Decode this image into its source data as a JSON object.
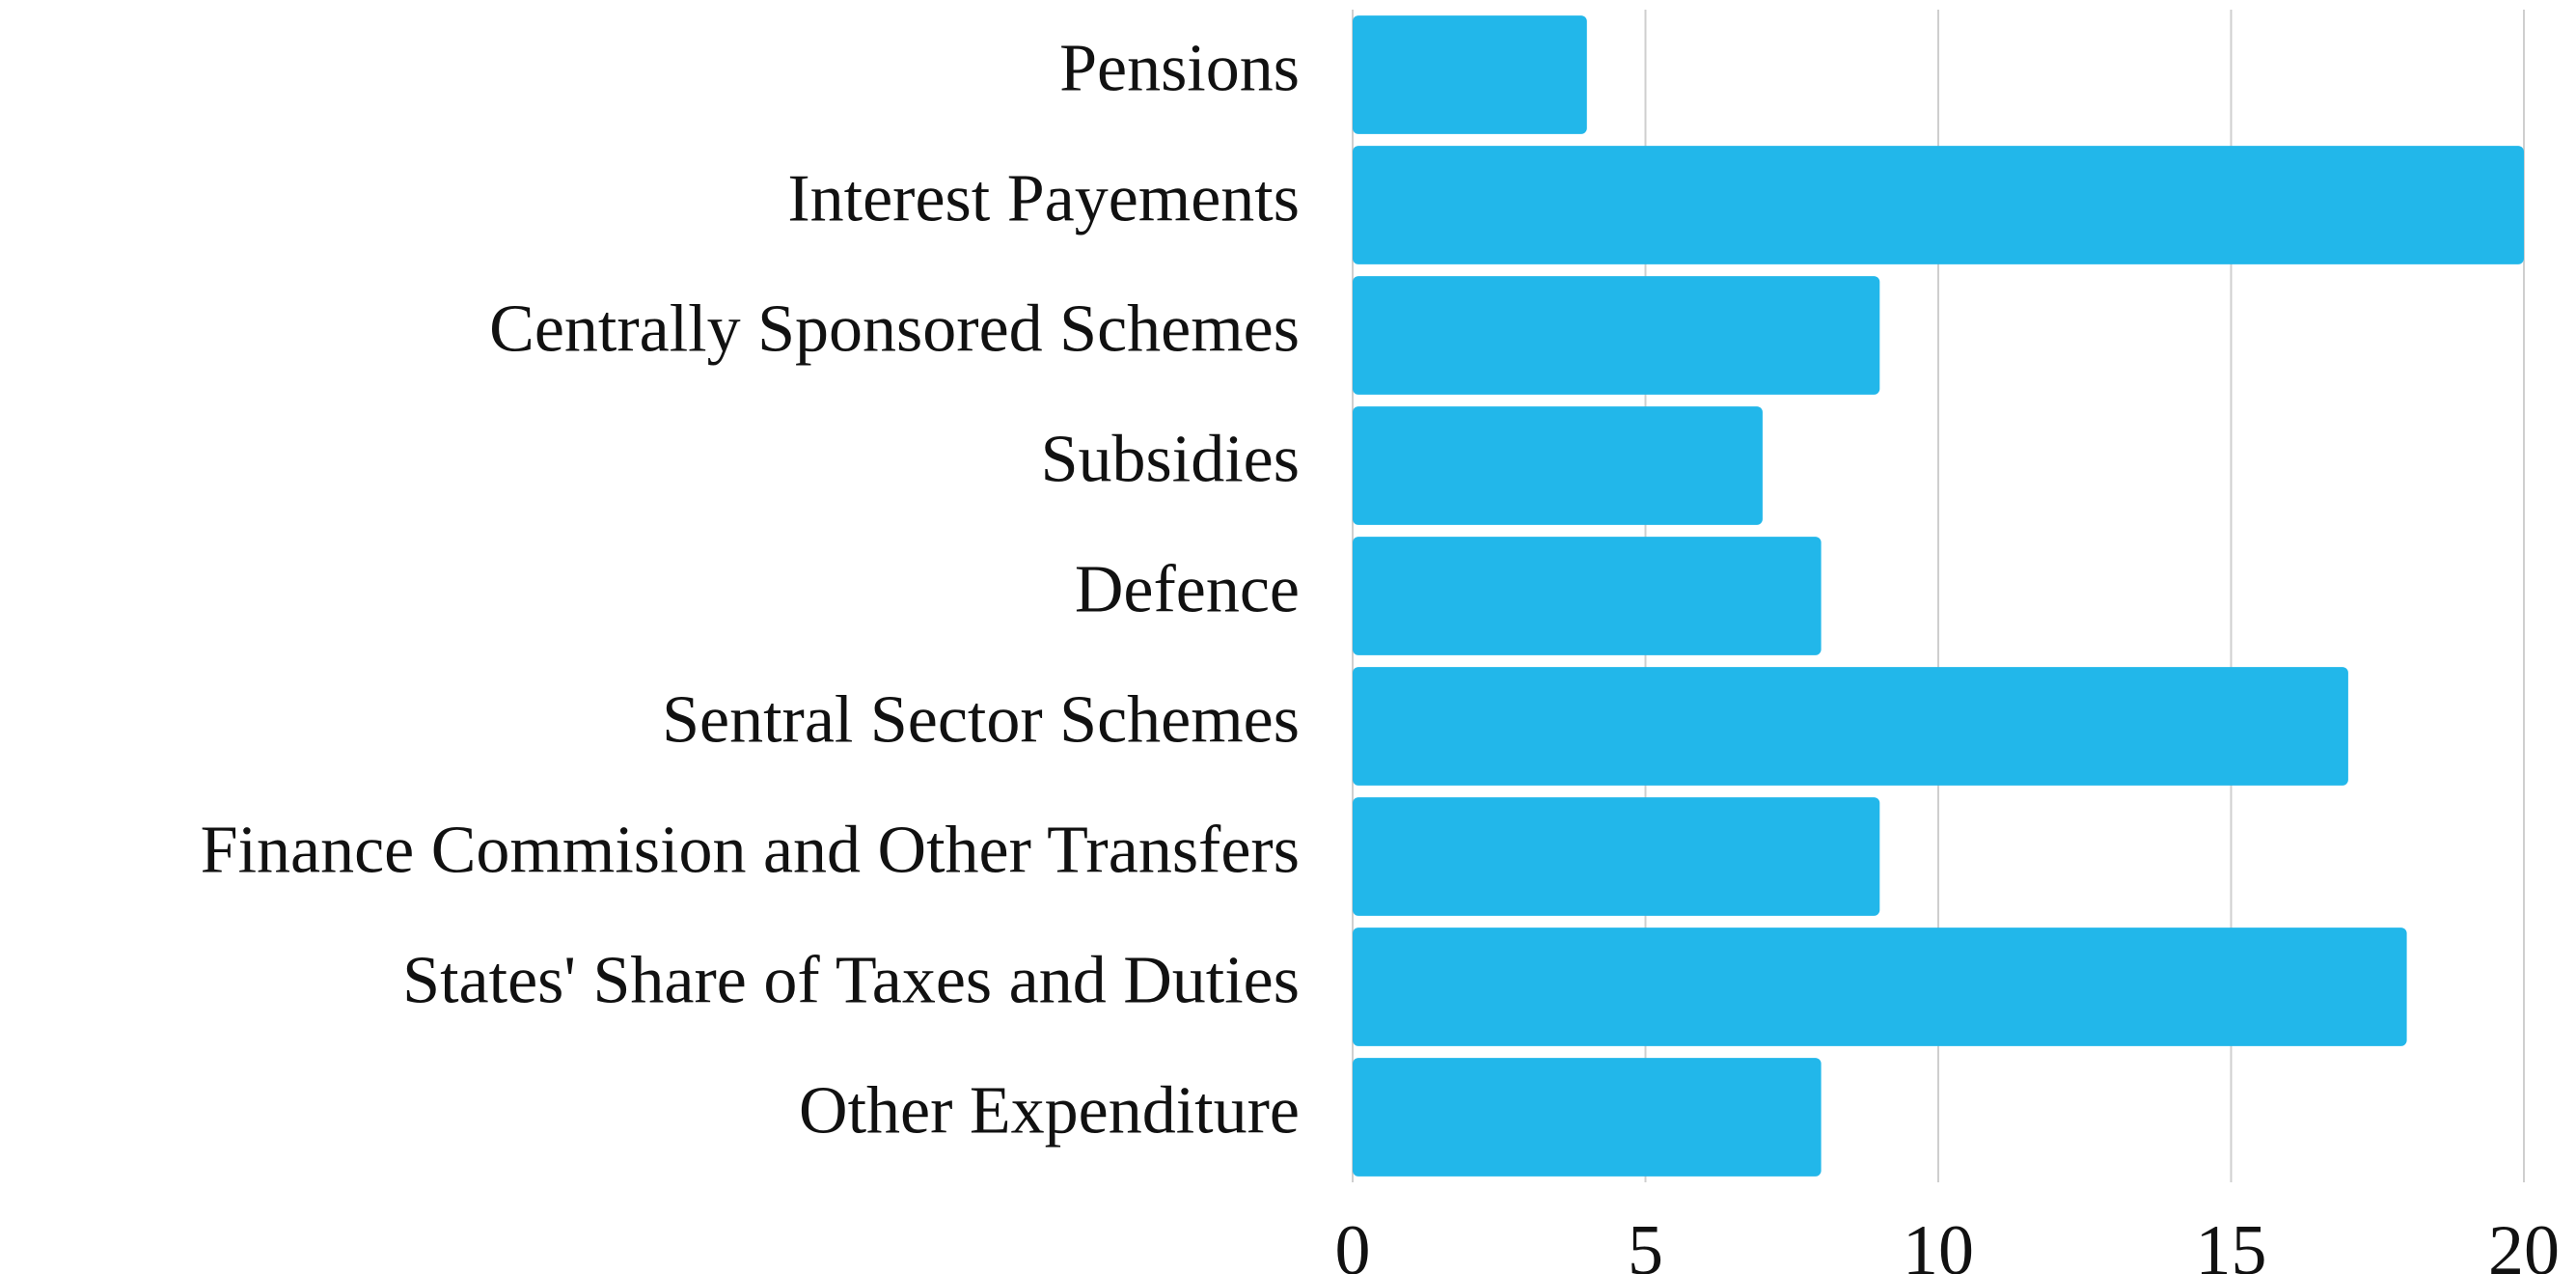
{
  "chart_data": {
    "type": "bar",
    "orientation": "horizontal",
    "categories": [
      "Pensions",
      "Interest Payements",
      "Centrally Sponsored Schemes",
      "Subsidies",
      "Defence",
      "Sentral Sector Schemes",
      "Finance Commision and Other Transfers",
      "States' Share of Taxes and Duties",
      "Other Expenditure"
    ],
    "values": [
      4,
      20,
      9,
      7,
      8,
      17,
      9,
      18,
      8
    ],
    "color": "#22b7ea",
    "xlim": [
      0,
      20
    ],
    "xticks": [
      0,
      5,
      10,
      15,
      20
    ],
    "grid": true
  }
}
